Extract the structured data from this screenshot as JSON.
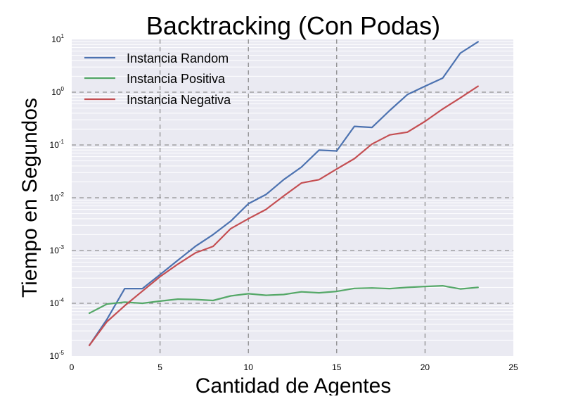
{
  "chart_data": {
    "type": "line",
    "title": "Backtracking (Con Podas)",
    "xlabel": "Cantidad de Agentes",
    "ylabel": "Tiempo en Segundos",
    "xlim": [
      0,
      25
    ],
    "ylim": [
      1e-05,
      10
    ],
    "yscale": "log",
    "grid": true,
    "legend_position": "top-left",
    "x_ticks": [
      {
        "value": 0,
        "label": "0"
      },
      {
        "value": 5,
        "label": "5"
      },
      {
        "value": 10,
        "label": "10"
      },
      {
        "value": 15,
        "label": "15"
      },
      {
        "value": 20,
        "label": "20"
      },
      {
        "value": 25,
        "label": "25"
      }
    ],
    "y_ticks": [
      {
        "value": 1e-05,
        "base": "10",
        "exp": "-5"
      },
      {
        "value": 0.0001,
        "base": "10",
        "exp": "-4"
      },
      {
        "value": 0.001,
        "base": "10",
        "exp": "-3"
      },
      {
        "value": 0.01,
        "base": "10",
        "exp": "-2"
      },
      {
        "value": 0.1,
        "base": "10",
        "exp": "-1"
      },
      {
        "value": 1,
        "base": "10",
        "exp": "0"
      },
      {
        "value": 10,
        "base": "10",
        "exp": "1"
      }
    ],
    "series": [
      {
        "name": "Instancia Random",
        "color": "#4c72b0",
        "x": [
          1,
          2,
          3,
          4,
          5,
          6,
          7,
          8,
          9,
          10,
          11,
          12,
          13,
          14,
          15,
          16,
          17,
          18,
          19,
          20,
          21,
          22,
          23
        ],
        "values": [
          1.6e-05,
          5e-05,
          0.00019,
          0.00019,
          0.00035,
          0.00065,
          0.0012,
          0.002,
          0.0036,
          0.0077,
          0.0115,
          0.022,
          0.038,
          0.08,
          0.077,
          0.225,
          0.215,
          0.45,
          0.9,
          1.3,
          1.85,
          5.5,
          9.0
        ]
      },
      {
        "name": "Instancia Positiva",
        "color": "#55a868",
        "x": [
          1,
          2,
          3,
          4,
          5,
          6,
          7,
          8,
          9,
          10,
          11,
          12,
          13,
          14,
          15,
          16,
          17,
          18,
          19,
          20,
          21,
          22,
          23
        ],
        "values": [
          6.5e-05,
          9.7e-05,
          0.000105,
          0.0001,
          0.00011,
          0.00012,
          0.000118,
          0.000113,
          0.000138,
          0.000152,
          0.000142,
          0.000147,
          0.000165,
          0.000158,
          0.000168,
          0.000192,
          0.000195,
          0.00019,
          0.0002,
          0.000208,
          0.000215,
          0.000187,
          0.0002
        ]
      },
      {
        "name": "Instancia Negativa",
        "color": "#c44e52",
        "x": [
          1,
          2,
          3,
          4,
          5,
          6,
          7,
          8,
          9,
          10,
          11,
          12,
          13,
          14,
          15,
          16,
          17,
          18,
          19,
          20,
          21,
          22,
          23
        ],
        "values": [
          1.6e-05,
          4.5e-05,
          9e-05,
          0.00017,
          0.00032,
          0.00055,
          0.0009,
          0.0012,
          0.0026,
          0.004,
          0.006,
          0.0108,
          0.019,
          0.022,
          0.035,
          0.055,
          0.104,
          0.155,
          0.175,
          0.28,
          0.48,
          0.78,
          1.3
        ]
      }
    ]
  }
}
